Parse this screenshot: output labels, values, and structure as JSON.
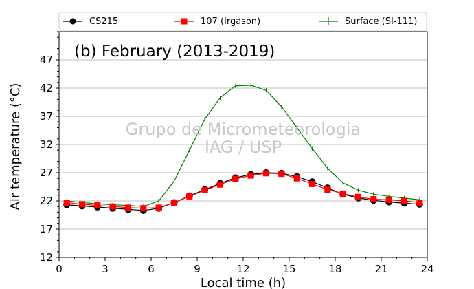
{
  "chart_data": {
    "type": "line",
    "title": "(b) February (2013-2019)",
    "xlabel": "Local time (h)",
    "ylabel": "Air temperature (°C)",
    "xlim": [
      0,
      24
    ],
    "ylim": [
      12,
      52
    ],
    "xticks": [
      0,
      3,
      6,
      9,
      12,
      15,
      18,
      21,
      24
    ],
    "yticks": [
      12,
      17,
      22,
      27,
      32,
      37,
      42,
      47
    ],
    "grid": "horizontal",
    "legend_position": "top",
    "watermark": [
      "Grupo de Micrometeorologia",
      "IAG / USP"
    ],
    "x": [
      0.5,
      1.5,
      2.5,
      3.5,
      4.5,
      5.5,
      6.5,
      7.5,
      8.5,
      9.5,
      10.5,
      11.5,
      12.5,
      13.5,
      14.5,
      15.5,
      16.5,
      17.5,
      18.5,
      19.5,
      20.5,
      21.5,
      22.5,
      23.5
    ],
    "series": [
      {
        "name": "CS215",
        "color": "#000000",
        "marker": "circle",
        "values": [
          21.3,
          21.1,
          20.9,
          20.7,
          20.5,
          20.3,
          20.7,
          21.7,
          22.9,
          24.0,
          25.1,
          26.1,
          26.7,
          27.0,
          26.9,
          26.3,
          25.4,
          24.3,
          23.2,
          22.5,
          22.1,
          21.8,
          21.6,
          21.4
        ]
      },
      {
        "name": "107 (Irgason)",
        "color": "#ff0000",
        "marker": "square",
        "values": [
          21.7,
          21.4,
          21.2,
          21.0,
          20.8,
          20.7,
          20.8,
          21.7,
          22.8,
          23.9,
          24.9,
          25.9,
          26.5,
          26.9,
          26.8,
          26.0,
          25.0,
          24.0,
          23.3,
          22.7,
          22.3,
          22.2,
          22.0,
          21.7
        ]
      },
      {
        "name": "Surface (SI-111)",
        "color": "#008000",
        "marker": "plus",
        "values": [
          22.0,
          21.7,
          21.5,
          21.3,
          21.2,
          21.0,
          22.0,
          25.5,
          31.0,
          36.5,
          40.3,
          42.4,
          42.5,
          41.6,
          38.7,
          35.0,
          31.3,
          27.8,
          25.2,
          23.9,
          23.2,
          22.8,
          22.5,
          22.2
        ]
      }
    ]
  }
}
